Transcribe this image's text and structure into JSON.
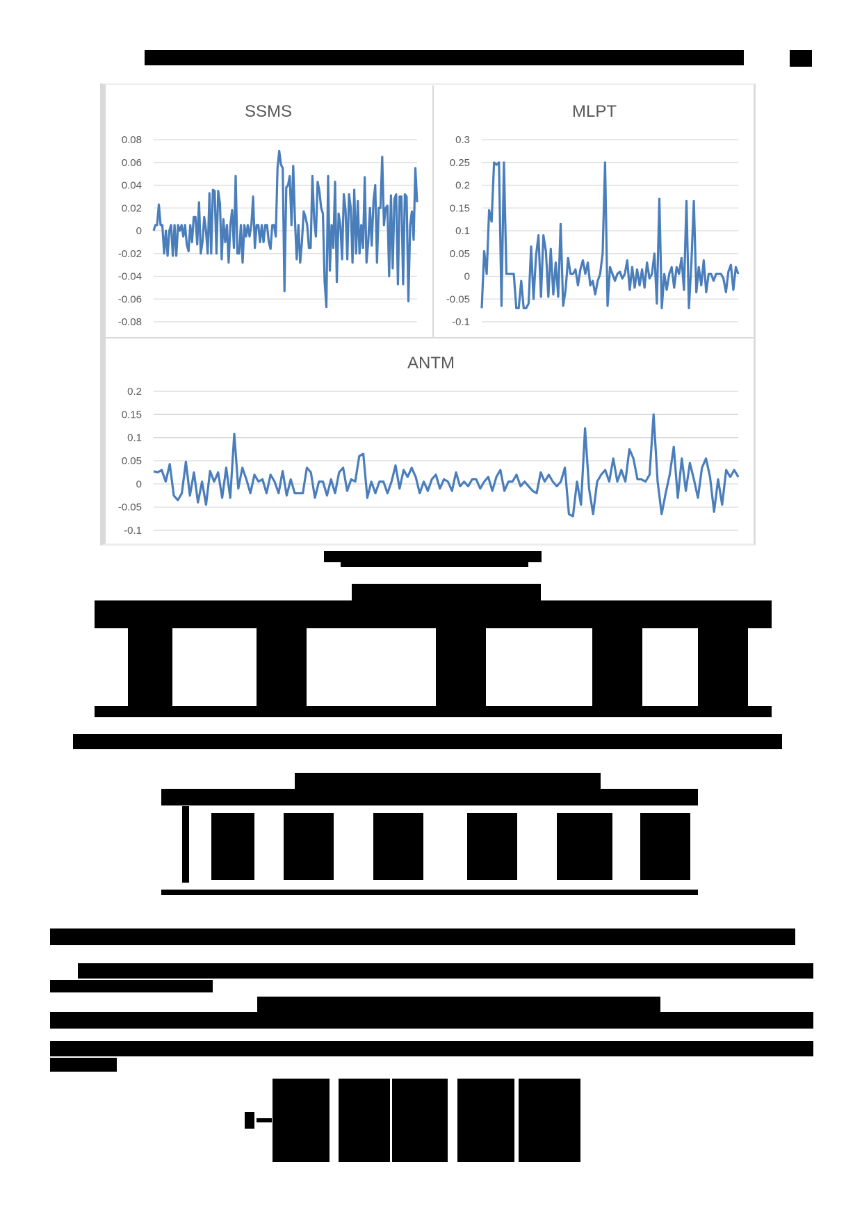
{
  "page": {
    "header_text": "[redacted running header]",
    "page_number": "[redacted]"
  },
  "figure": {
    "caption": "[redacted figure caption]",
    "panels": [
      "SSMS",
      "MLPT",
      "ANTM"
    ]
  },
  "table1": {
    "title": "[redacted table title]",
    "note": "[redacted table note]"
  },
  "table2": {
    "title": "[redacted table title]"
  },
  "body": {
    "section_heading": "[redacted heading]",
    "paragraph": "[redacted paragraph text with inline equation]"
  },
  "colors": {
    "series": "#4a7ebb",
    "grid": "#d9d9d9",
    "axis_text": "#595959",
    "redaction": "#000000"
  },
  "chart_data": [
    {
      "type": "line",
      "title": "SSMS",
      "xlabel": "",
      "ylabel": "",
      "ylim": [
        -0.08,
        0.08
      ],
      "yticks": [
        "0.08",
        "0.06",
        "0.04",
        "0.02",
        "0",
        "-0.02",
        "-0.04",
        "-0.06",
        "-0.08"
      ],
      "grid": true,
      "legend": "none",
      "series": [
        {
          "name": "SSMS returns",
          "values": [
            0,
            0.005,
            0.005,
            0.023,
            0.005,
            0.005,
            -0.02,
            0,
            -0.022,
            0,
            0.005,
            -0.022,
            0.005,
            -0.022,
            0.005,
            0,
            0.005,
            -0.005,
            0.005,
            -0.012,
            -0.018,
            0.005,
            -0.01,
            0.012,
            0.012,
            -0.012,
            0.025,
            -0.02,
            -0.01,
            0.012,
            0,
            -0.02,
            0.033,
            -0.02,
            0.036,
            0.035,
            -0.02,
            0.035,
            0.024,
            -0.025,
            0.01,
            -0.01,
            0.005,
            -0.028,
            0.005,
            0.018,
            -0.015,
            0.048,
            -0.02,
            -0.02,
            0.005,
            -0.028,
            0.005,
            -0.005,
            0.005,
            -0.005,
            0.005,
            0.03,
            -0.015,
            0.005,
            0.005,
            -0.01,
            0.005,
            -0.01,
            0.005,
            0.005,
            -0.01,
            -0.016,
            0.005,
            0.005,
            -0.005,
            0.055,
            0.07,
            0.058,
            0.055,
            -0.053,
            0.038,
            0.04,
            0.048,
            0.005,
            0.057,
            0.01,
            -0.025,
            0.005,
            -0.028,
            -0.01,
            0.017,
            0.012,
            0.005,
            -0.015,
            -0.015,
            0.048,
            0.01,
            -0.005,
            0.043,
            0.035,
            0.02,
            0.015,
            -0.045,
            -0.067,
            0.048,
            -0.035,
            0.005,
            -0.015,
            0.043,
            -0.045,
            0.015,
            0.005,
            -0.025,
            0.032,
            0.018,
            -0.025,
            0.032,
            0.02,
            -0.028,
            0.036,
            -0.02,
            0.026,
            -0.02,
            0.005,
            -0.015,
            0.047,
            -0.028,
            -0.01,
            0.02,
            -0.013,
            0.026,
            0.04,
            -0.028,
            0.02,
            0.02,
            0.065,
            0.005,
            0.02,
            0.022,
            -0.04,
            0.031,
            -0.033,
            0.028,
            0.032,
            -0.047,
            0.03,
            0.03,
            -0.047,
            0.032,
            0.03,
            -0.062,
            0.005,
            0.017,
            -0.008,
            0.055,
            0.025
          ]
        }
      ]
    },
    {
      "type": "line",
      "title": "MLPT",
      "xlabel": "",
      "ylabel": "",
      "ylim": [
        -0.1,
        0.3
      ],
      "yticks": [
        "0.3",
        "0.25",
        "0.2",
        "0.15",
        "0.1",
        "0.05",
        "0",
        "-0.05",
        "-0.1"
      ],
      "grid": true,
      "legend": "none",
      "series": [
        {
          "name": "MLPT returns",
          "values": [
            -0.07,
            0.055,
            0.005,
            0.145,
            0.12,
            0.25,
            0.245,
            0.25,
            -0.065,
            0.25,
            0.005,
            0.005,
            0.005,
            0.005,
            -0.07,
            -0.07,
            -0.01,
            -0.07,
            -0.07,
            -0.06,
            0.065,
            -0.05,
            0.045,
            0.09,
            -0.045,
            0.09,
            0.055,
            -0.045,
            0.06,
            -0.04,
            0.03,
            -0.045,
            0.115,
            -0.065,
            -0.03,
            0.04,
            0.005,
            0.005,
            0.015,
            -0.02,
            0.015,
            0.035,
            0.005,
            0.03,
            -0.02,
            -0.01,
            -0.04,
            -0.01,
            0.005,
            0.05,
            0.25,
            -0.065,
            0.02,
            0.005,
            -0.01,
            0.005,
            0.01,
            -0.005,
            0.005,
            0.035,
            -0.03,
            0.02,
            -0.025,
            0.015,
            -0.02,
            0.015,
            -0.025,
            0.03,
            -0.005,
            0.005,
            0.05,
            -0.06,
            0.17,
            -0.07,
            0.005,
            -0.03,
            0.005,
            0.02,
            -0.025,
            0.02,
            0.005,
            0.04,
            -0.03,
            0.165,
            -0.07,
            0.03,
            0.165,
            -0.035,
            0.02,
            -0.02,
            0.035,
            -0.035,
            0.005,
            0.005,
            -0.01,
            0.005,
            0.005,
            0.005,
            -0.005,
            -0.035,
            0.01,
            0.025,
            -0.03,
            0.02,
            0.005
          ]
        }
      ]
    },
    {
      "type": "line",
      "title": "ANTM",
      "xlabel": "",
      "ylabel": "",
      "ylim": [
        -0.1,
        0.2
      ],
      "yticks": [
        "0.2",
        "0.15",
        "0.1",
        "0.05",
        "0",
        "-0.05",
        "-0.1"
      ],
      "grid": true,
      "legend": "none",
      "series": [
        {
          "name": "ANTM returns",
          "values": [
            0.027,
            0.025,
            0.03,
            0.005,
            0.043,
            -0.025,
            -0.035,
            -0.02,
            0.048,
            -0.025,
            0.025,
            -0.04,
            0.005,
            -0.045,
            0.028,
            0.005,
            0.025,
            -0.03,
            0.035,
            -0.03,
            0.108,
            -0.01,
            0.035,
            0.01,
            -0.02,
            0.02,
            0.005,
            0.01,
            -0.02,
            0.02,
            0.005,
            -0.02,
            0.028,
            -0.025,
            0.01,
            -0.02,
            -0.02,
            -0.02,
            0.035,
            0.025,
            -0.03,
            0.005,
            0.005,
            -0.025,
            0.01,
            -0.02,
            0.025,
            0.035,
            -0.015,
            0.01,
            0.005,
            0.06,
            0.065,
            -0.03,
            0.005,
            -0.02,
            0.005,
            0.005,
            -0.02,
            0.005,
            0.04,
            -0.01,
            0.03,
            0.015,
            0.035,
            0.015,
            -0.02,
            0.005,
            -0.015,
            0.01,
            0.02,
            -0.01,
            0.01,
            0.005,
            -0.015,
            0.025,
            -0.005,
            0.005,
            -0.005,
            0.01,
            0.01,
            -0.01,
            0.005,
            0.015,
            -0.015,
            0.015,
            0.03,
            -0.015,
            0.005,
            0.005,
            0.02,
            -0.005,
            0.005,
            -0.005,
            -0.015,
            -0.02,
            0.025,
            0.005,
            0.02,
            0.005,
            -0.005,
            0.005,
            0.035,
            -0.065,
            -0.07,
            0.005,
            -0.045,
            0.12,
            -0.01,
            -0.065,
            0.005,
            0.02,
            0.03,
            0.005,
            0.055,
            0.005,
            0.03,
            0.005,
            0.075,
            0.055,
            0.01,
            0.01,
            0.005,
            0.02,
            0.15,
            0.005,
            -0.065,
            -0.02,
            0.02,
            0.08,
            -0.03,
            0.055,
            -0.015,
            0.045,
            0.01,
            -0.03,
            0.035,
            0.055,
            0.015,
            -0.06,
            0.01,
            -0.045,
            0.03,
            0.015,
            0.03,
            0.015
          ]
        }
      ]
    }
  ]
}
